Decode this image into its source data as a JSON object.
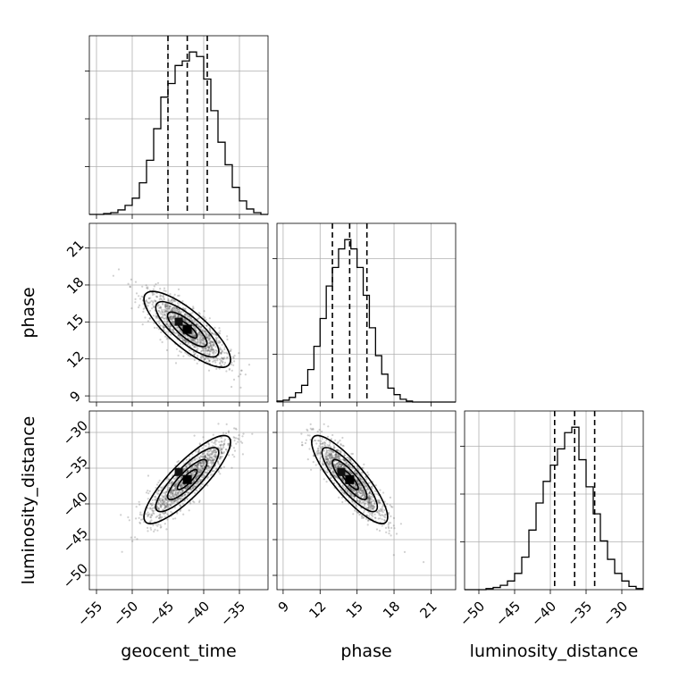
{
  "chart_data": {
    "type": "corner",
    "parameters": [
      "geocent_time",
      "phase",
      "luminosity_distance"
    ],
    "axis_labels": {
      "geocent_time": "geocent_time",
      "phase": "phase",
      "luminosity_distance": "luminosity_distance"
    },
    "ranges": {
      "geocent_time": [
        -56,
        -31
      ],
      "phase": [
        8.5,
        23
      ],
      "luminosity_distance": [
        -52,
        -27
      ]
    },
    "ticks": {
      "geocent_time": [
        -55,
        -50,
        -45,
        -40,
        -35
      ],
      "phase": [
        9,
        12,
        15,
        18,
        21
      ],
      "luminosity_distance": [
        -50,
        -45,
        -40,
        -35,
        -30
      ]
    },
    "tick_labels": {
      "geocent_time": [
        "−55",
        "−50",
        "−45",
        "−40",
        "−35"
      ],
      "phase": [
        "9",
        "12",
        "15",
        "18",
        "21"
      ],
      "luminosity_distance": [
        "−50",
        "−45",
        "−40",
        "−35",
        "−30"
      ]
    },
    "quantiles_16_50_84": {
      "geocent_time": [
        -45.0,
        -42.3,
        -39.5
      ],
      "phase": [
        13.0,
        14.4,
        15.8
      ],
      "luminosity_distance": [
        -39.4,
        -36.6,
        -33.8
      ]
    },
    "histograms": {
      "geocent_time": {
        "bin_edges": [
          -56,
          -55,
          -54,
          -53,
          -52,
          -51,
          -50,
          -49,
          -48,
          -47,
          -46,
          -45,
          -44,
          -43,
          -42,
          -41,
          -40,
          -39,
          -38,
          -37,
          -36,
          -35,
          -34,
          -33,
          -32,
          -31
        ],
        "counts": [
          0,
          0,
          1,
          2,
          5,
          10,
          18,
          35,
          60,
          95,
          130,
          145,
          165,
          170,
          180,
          175,
          150,
          115,
          80,
          55,
          30,
          15,
          6,
          2,
          0
        ]
      },
      "phase": {
        "bin_edges": [
          8.5,
          9.0,
          9.5,
          10.0,
          10.5,
          11.0,
          11.5,
          12.0,
          12.5,
          13.0,
          13.5,
          14.0,
          14.5,
          15.0,
          15.5,
          16.0,
          16.5,
          17.0,
          17.5,
          18.0,
          18.5,
          19.0,
          19.5,
          20.0,
          20.5,
          21.0,
          21.5,
          22.0,
          22.5,
          23.0
        ],
        "counts": [
          1,
          2,
          5,
          10,
          18,
          35,
          60,
          90,
          125,
          145,
          165,
          175,
          165,
          145,
          115,
          80,
          50,
          30,
          15,
          8,
          3,
          1,
          0,
          0,
          0,
          0,
          0,
          0,
          0
        ]
      },
      "luminosity_distance": {
        "bin_edges": [
          -52,
          -51,
          -50,
          -49,
          -48,
          -47,
          -46,
          -45,
          -44,
          -43,
          -42,
          -41,
          -40,
          -39,
          -38,
          -37,
          -36,
          -35,
          -34,
          -33,
          -32,
          -31,
          -30,
          -29,
          -28,
          -27
        ],
        "counts": [
          0,
          0,
          0,
          1,
          2,
          4,
          8,
          15,
          30,
          55,
          80,
          100,
          115,
          130,
          145,
          150,
          120,
          95,
          70,
          45,
          28,
          15,
          8,
          3,
          1
        ]
      }
    },
    "correlations": {
      "phase|geocent_time": -0.8,
      "luminosity_distance|geocent_time": 0.85,
      "luminosity_distance|phase": -0.85
    },
    "grid": true
  }
}
